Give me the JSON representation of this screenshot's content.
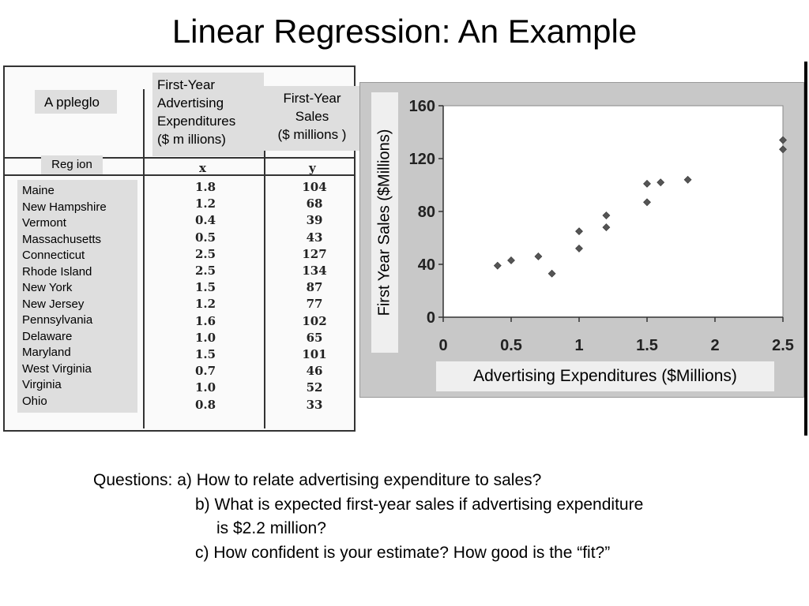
{
  "title": "Linear Regression: An Example",
  "table": {
    "appleglo_label": "A ppleglo",
    "region_label": "Reg ion",
    "col_x_header": [
      "First-Year",
      "Advertising",
      "Expenditures",
      "($ m illions)"
    ],
    "col_y_header": [
      "First-Year",
      "Sales",
      "($ millions )"
    ],
    "x_letter": "x",
    "y_letter": "y",
    "states": [
      "Maine",
      "New Hampshire",
      "Vermont",
      "Massachusetts",
      "Connecticut",
      "Rhode Island",
      "New York",
      "New Jersey",
      "Pennsylvania",
      "Delaware",
      "Maryland",
      "West Virginia",
      "Virginia",
      "Ohio"
    ],
    "x_values": [
      "1.8",
      "1.2",
      "0.4",
      "0.5",
      "2.5",
      "2.5",
      "1.5",
      "1.2",
      "1.6",
      "1.0",
      "1.5",
      "0.7",
      "1.0",
      "0.8"
    ],
    "y_values": [
      "104",
      "68",
      "39",
      "43",
      "127",
      "134",
      "87",
      "77",
      "102",
      "65",
      "101",
      "46",
      "52",
      "33"
    ]
  },
  "chart_data": {
    "type": "scatter",
    "x": [
      1.8,
      1.2,
      0.4,
      0.5,
      2.5,
      2.5,
      1.5,
      1.2,
      1.6,
      1.0,
      1.5,
      0.7,
      1.0,
      0.8
    ],
    "y": [
      104,
      68,
      39,
      43,
      127,
      134,
      87,
      77,
      102,
      65,
      101,
      46,
      52,
      33
    ],
    "xlabel": "Advertising Expenditures ($Millions)",
    "ylabel": "First Year Sales ($Millions)",
    "xlim": [
      0,
      2.5
    ],
    "ylim": [
      0,
      160
    ],
    "xticks": [
      "0",
      "0.5",
      "1",
      "1.5",
      "2",
      "2.5"
    ],
    "yticks": [
      "0",
      "40",
      "80",
      "120",
      "160"
    ],
    "grid": false,
    "marker_color": "#555555"
  },
  "questions": {
    "a": "Questions: a) How to relate advertising expenditure to sales?",
    "b1": "b) What is expected first-year sales if advertising expenditure",
    "b2": "is $2.2 million?",
    "c": "c) How confident is your estimate? How good is the “fit?”"
  }
}
